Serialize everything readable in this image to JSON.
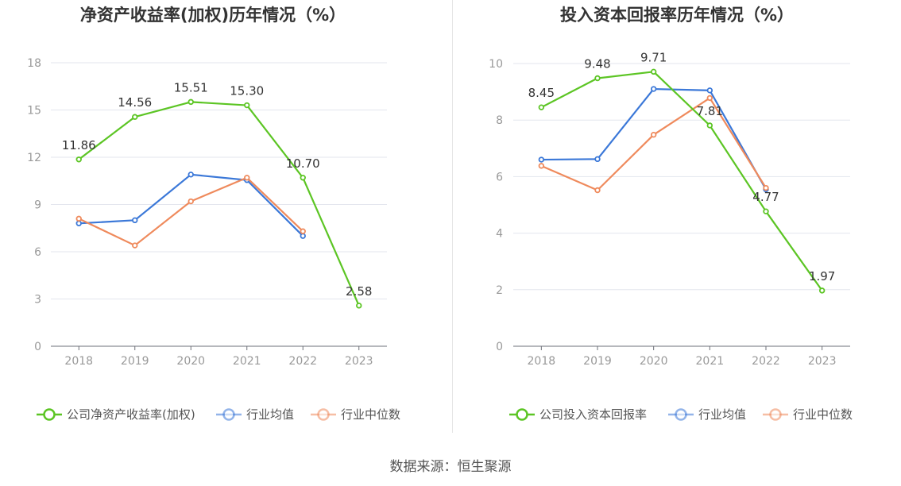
{
  "chart_data": [
    {
      "type": "line",
      "title": "净资产收益率(加权)历年情况（%）",
      "x": [
        "2018",
        "2019",
        "2020",
        "2021",
        "2022",
        "2023"
      ],
      "ylim": [
        0,
        18
      ],
      "yticks": [
        0,
        3,
        6,
        9,
        12,
        15,
        18
      ],
      "grid": true,
      "legend_position": "bottom",
      "series": [
        {
          "name": "公司净资产收益率(加权)",
          "color": "#5cc524",
          "values": [
            11.86,
            14.56,
            15.51,
            15.3,
            10.7,
            2.58
          ],
          "labels": [
            "11.86",
            "14.56",
            "15.51",
            "15.30",
            "10.70",
            "2.58"
          ]
        },
        {
          "name": "行业均值",
          "color": "#3b78d8",
          "values": [
            7.8,
            8.0,
            10.9,
            10.55,
            7.0,
            null
          ]
        },
        {
          "name": "行业中位数",
          "color": "#ef8a5c",
          "values": [
            8.1,
            6.4,
            9.2,
            10.7,
            7.3,
            null
          ]
        }
      ]
    },
    {
      "type": "line",
      "title": "投入资本回报率历年情况（%）",
      "x": [
        "2018",
        "2019",
        "2020",
        "2021",
        "2022",
        "2023"
      ],
      "ylim": [
        0,
        10
      ],
      "yticks": [
        0,
        2,
        4,
        6,
        8,
        10
      ],
      "grid": true,
      "legend_position": "bottom",
      "series": [
        {
          "name": "公司投入资本回报率",
          "color": "#5cc524",
          "values": [
            8.45,
            9.48,
            9.71,
            7.81,
            4.77,
            1.97
          ],
          "labels": [
            "8.45",
            "9.48",
            "9.71",
            "7.81",
            "4.77",
            "1.97"
          ]
        },
        {
          "name": "行业均值",
          "color": "#3b78d8",
          "values": [
            6.6,
            6.62,
            9.1,
            9.05,
            5.55,
            null
          ]
        },
        {
          "name": "行业中位数",
          "color": "#ef8a5c",
          "values": [
            6.38,
            5.52,
            7.48,
            8.78,
            5.6,
            null
          ]
        }
      ]
    }
  ],
  "footer": {
    "label": "数据来源：",
    "source": "恒生聚源"
  }
}
